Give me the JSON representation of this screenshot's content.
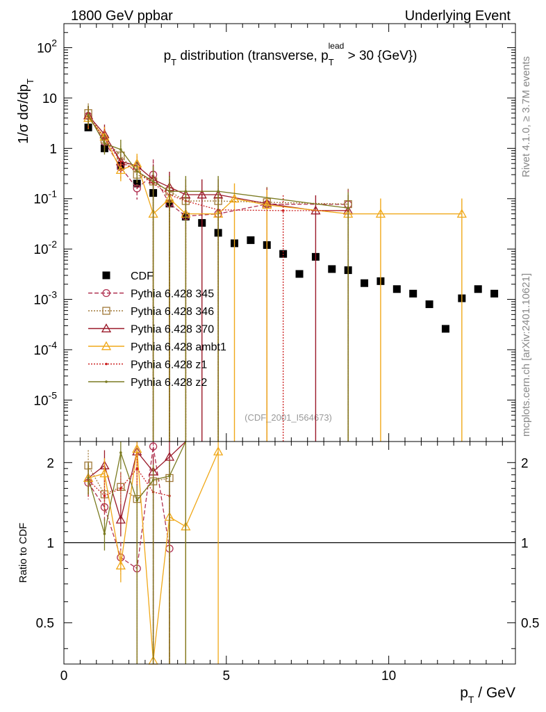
{
  "header": {
    "left_label": "1800 GeV ppbar",
    "right_label": "Underlying Event",
    "side_label_top": "Rivet 4.1.0, ≥ 3.7M events",
    "side_label_bottom": "mcplots.cern.ch [arXiv:2401.10621]"
  },
  "chart_data": {
    "type": "scatter",
    "title": "p_T distribution (transverse, p_T^lead > 30 {GeV})",
    "watermark": "(CDF_2001_I564673)",
    "xlabel": "p_T / GeV",
    "ylabel": "1/σ dσ/dp_T",
    "ratio_ylabel": "Ratio to CDF",
    "xlim": [
      0,
      13.9
    ],
    "ylim": [
      1.5e-06,
      300
    ],
    "ratio_ylim": [
      0.35,
      2.4
    ],
    "x_ticks": [
      "0",
      "5",
      "10"
    ],
    "y_ticks": [
      "10^-5",
      "10^-4",
      "10^-3",
      "10^-2",
      "10^-1",
      "1",
      "10",
      "10^2"
    ],
    "ratio_ticks": [
      "0.5",
      "1",
      "2"
    ],
    "series": [
      {
        "name": "CDF",
        "color": "#000000",
        "marker": "square",
        "x": [
          0.75,
          1.25,
          1.75,
          2.25,
          2.75,
          3.25,
          3.75,
          4.25,
          4.75,
          5.25,
          5.75,
          6.25,
          6.75,
          7.25,
          7.75,
          8.25,
          8.75,
          9.25,
          9.75,
          10.25,
          10.75,
          11.25,
          11.75,
          12.25,
          12.75,
          13.25
        ],
        "y": [
          2.6,
          1.0,
          0.45,
          0.2,
          0.13,
          0.08,
          0.044,
          0.033,
          0.021,
          0.013,
          0.015,
          0.012,
          0.008,
          0.0032,
          0.007,
          0.004,
          0.0038,
          0.0021,
          0.0023,
          0.0016,
          0.0013,
          0.0008,
          0.00026,
          0.00105,
          0.0016,
          0.0013
        ]
      },
      {
        "name": "Pythia 6.428 345",
        "color": "#b03050",
        "marker": "circle",
        "dash": "6,3",
        "x": [
          0.75,
          1.25,
          1.75,
          2.25,
          2.75,
          3.25,
          3.75,
          4.75,
          6.25,
          8.75
        ],
        "y": [
          4.4,
          1.35,
          0.42,
          0.16,
          0.3,
          0.08,
          0.045,
          0.05,
          0.078,
          0.077
        ],
        "ratio": [
          1.68,
          1.36,
          0.88,
          0.8,
          2.3,
          0.95
        ]
      },
      {
        "name": "Pythia 6.428 346",
        "color": "#a07838",
        "marker": "square-open",
        "dash": "2,2",
        "x": [
          0.75,
          1.25,
          1.75,
          2.25,
          2.75,
          3.25,
          3.75,
          4.75,
          6.25,
          8.75
        ],
        "y": [
          5.0,
          1.5,
          0.72,
          0.3,
          0.22,
          0.14,
          0.09,
          0.09,
          0.085,
          0.078
        ],
        "ratio": [
          1.95,
          1.52,
          1.62,
          1.46,
          1.7,
          1.75
        ]
      },
      {
        "name": "Pythia 6.428 370",
        "color": "#9a1828",
        "marker": "triangle-open",
        "dash": "",
        "x": [
          0.75,
          1.25,
          1.75,
          2.25,
          2.75,
          3.25,
          3.75,
          4.25,
          4.75,
          6.25,
          7.75,
          8.75
        ],
        "y": [
          4.5,
          1.9,
          0.55,
          0.45,
          0.24,
          0.17,
          0.12,
          0.12,
          0.12,
          0.08,
          0.058,
          0.058
        ],
        "ratio": [
          1.75,
          1.95,
          1.22,
          2.2,
          1.85,
          2.1,
          2.45
        ]
      },
      {
        "name": "Pythia 6.428 ambt1",
        "color": "#f0a818",
        "marker": "triangle-open",
        "dash": "",
        "x": [
          0.75,
          1.25,
          1.75,
          2.25,
          2.75,
          3.25,
          3.75,
          4.75,
          5.25,
          6.25,
          8.75,
          9.75,
          12.25
        ],
        "y": [
          4.0,
          1.7,
          0.37,
          0.5,
          0.05,
          0.1,
          0.05,
          0.05,
          0.1,
          0.075,
          0.05,
          0.05,
          0.05
        ],
        "ratio": [
          1.75,
          1.82,
          0.82,
          2.25,
          0.36,
          1.25,
          1.15,
          2.2
        ]
      },
      {
        "name": "Pythia 6.428 z1",
        "color": "#cc2020",
        "marker": "dot",
        "dash": "2,2",
        "x": [
          0.75,
          1.25,
          1.75,
          2.25,
          2.75,
          3.25,
          3.75,
          4.75,
          6.75,
          8.75
        ],
        "y": [
          4.3,
          1.55,
          0.55,
          0.35,
          0.2,
          0.12,
          0.09,
          0.06,
          0.058,
          0.058
        ],
        "ratio": [
          1.72,
          1.5,
          1.6,
          1.9,
          1.55,
          1.5
        ]
      },
      {
        "name": "Pythia 6.428 z2",
        "color": "#7a7a20",
        "marker": "dot",
        "dash": "",
        "x": [
          0.75,
          1.25,
          1.75,
          2.25,
          2.75,
          3.25,
          3.75,
          4.75,
          8.75
        ],
        "y": [
          4.6,
          1.25,
          0.95,
          0.35,
          0.22,
          0.14,
          0.14,
          0.14,
          0.065
        ],
        "ratio": [
          1.75,
          1.08,
          2.18,
          1.44,
          1.72,
          1.78,
          2.5
        ]
      }
    ]
  }
}
